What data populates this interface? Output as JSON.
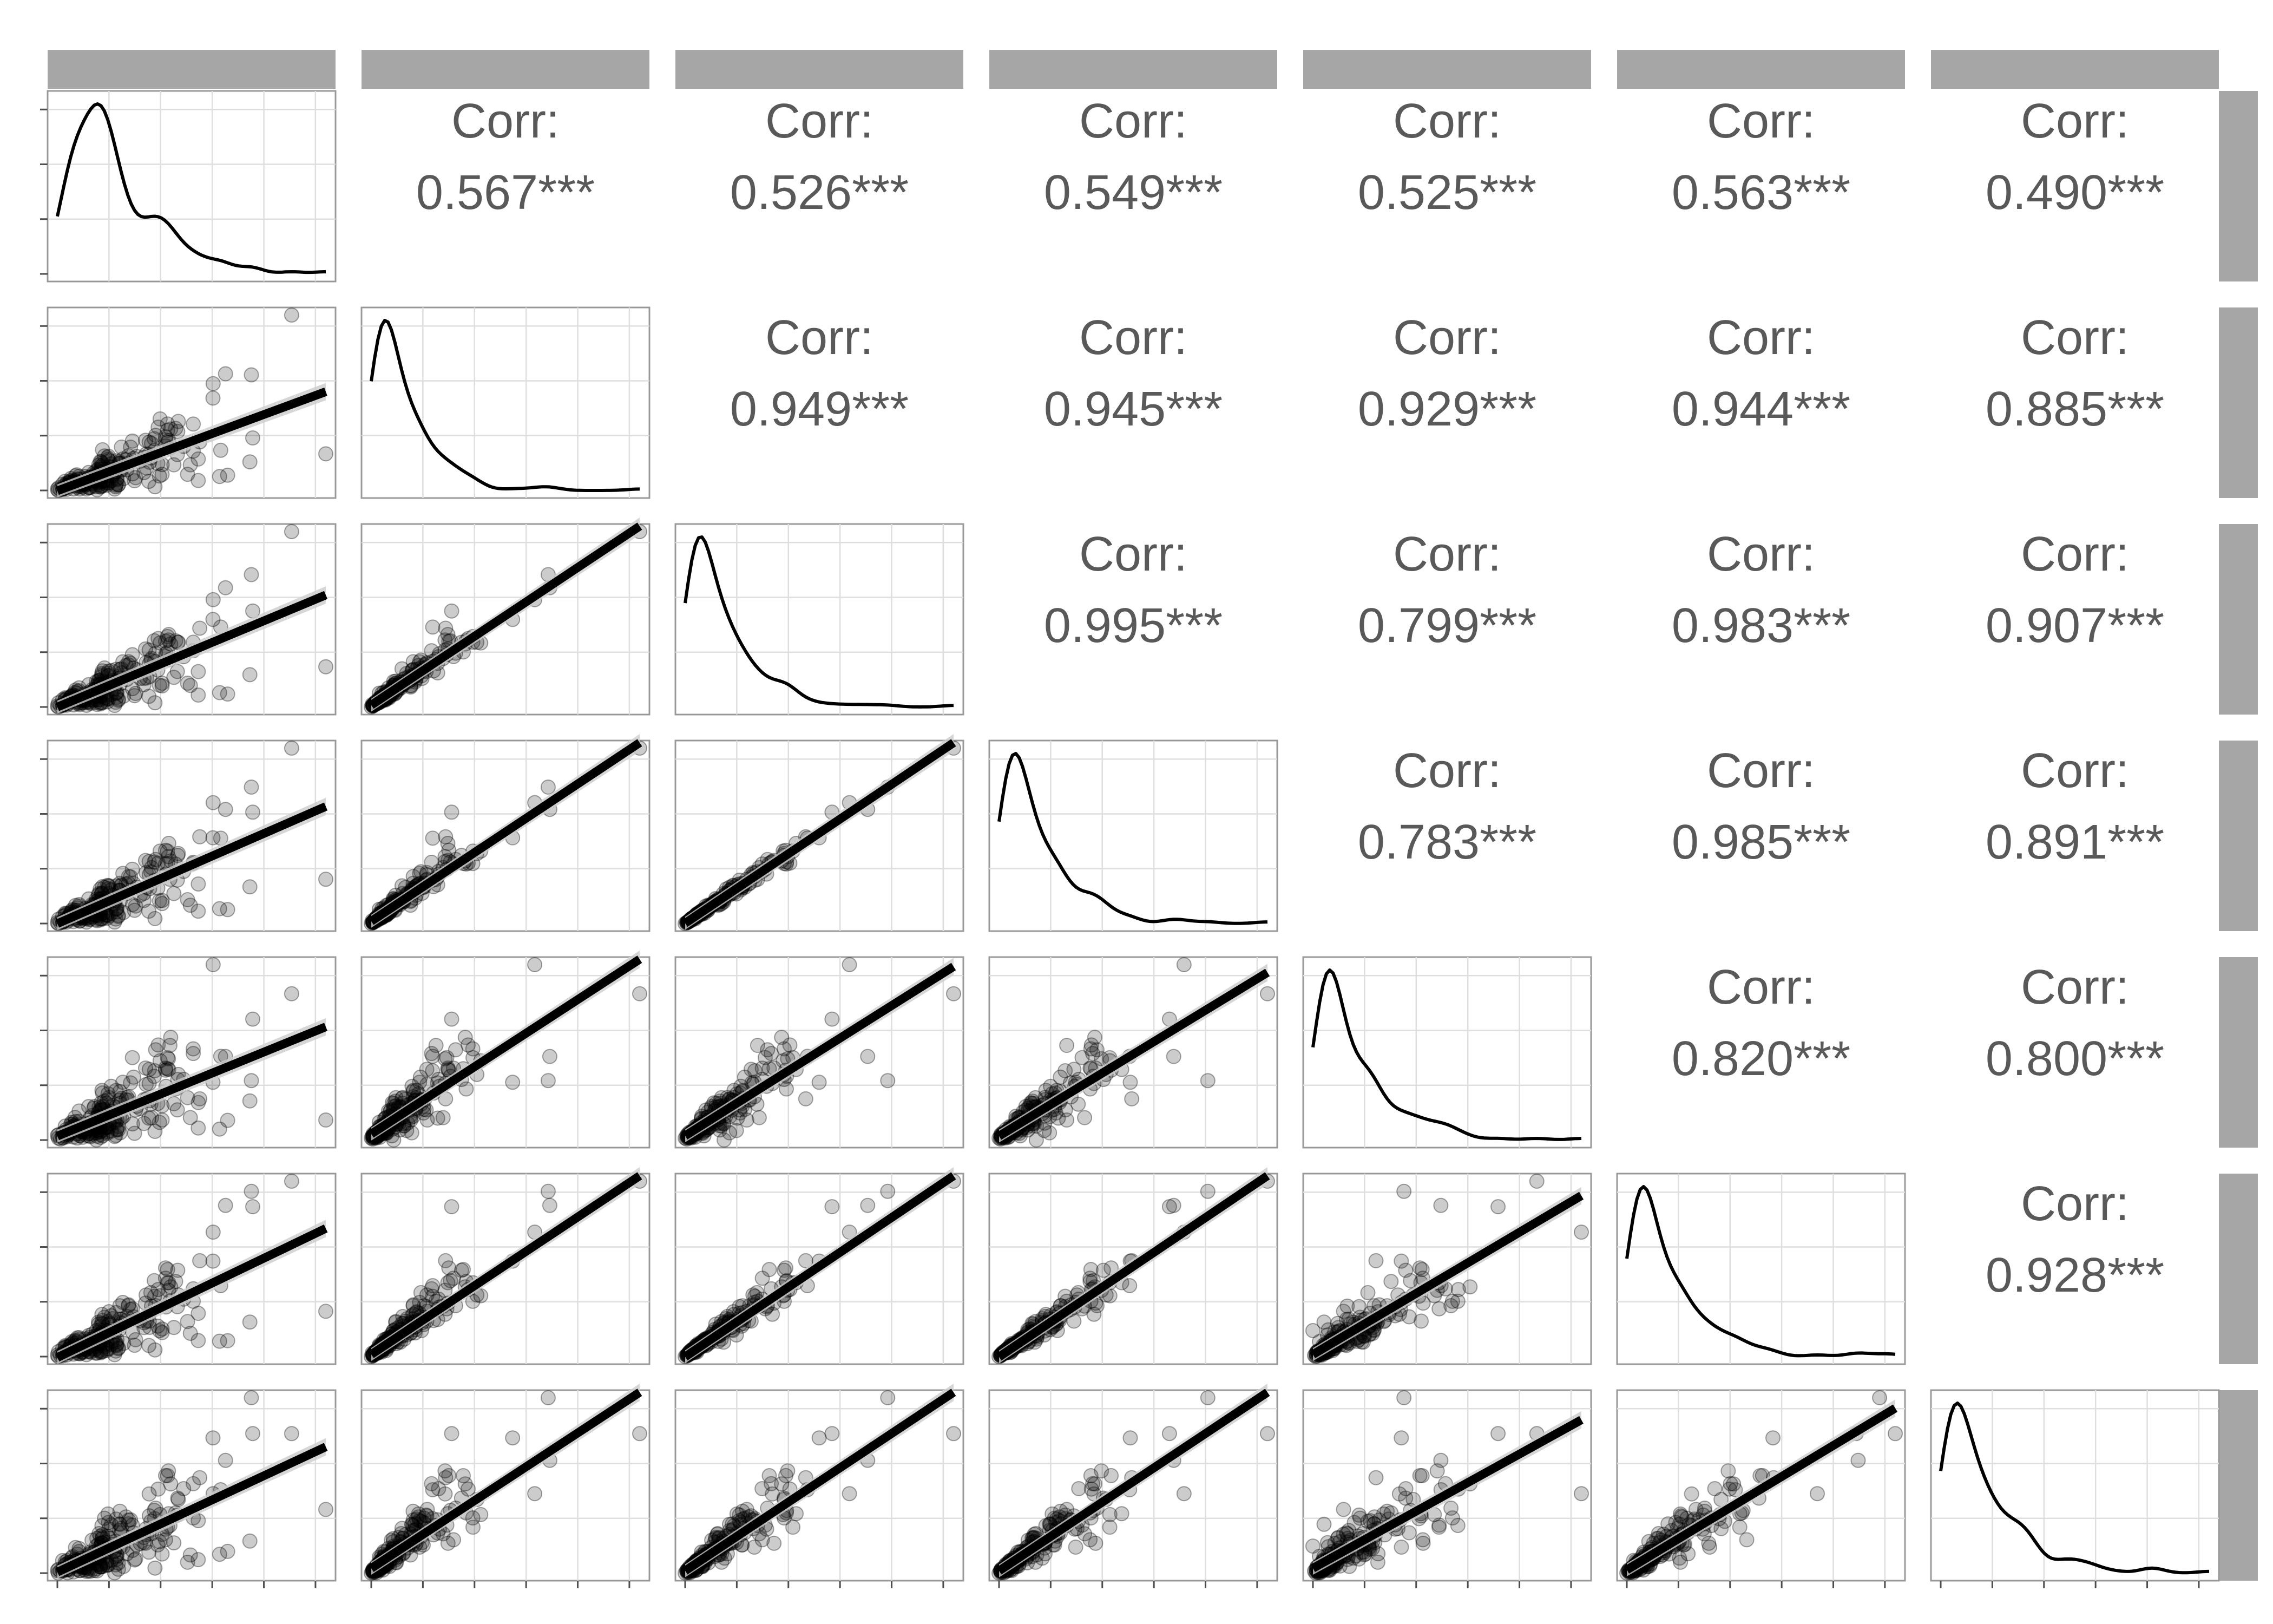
{
  "chart_data": {
    "type": "scatter",
    "title": "",
    "variables": [
      "",
      "",
      "",
      "",
      "",
      "",
      ""
    ],
    "corr_label": "Corr:",
    "correlations": [
      {
        "row": 0,
        "col": 1,
        "text": "0.567***",
        "value": 0.567
      },
      {
        "row": 0,
        "col": 2,
        "text": "0.526***",
        "value": 0.526
      },
      {
        "row": 0,
        "col": 3,
        "text": "0.549***",
        "value": 0.549
      },
      {
        "row": 0,
        "col": 4,
        "text": "0.525***",
        "value": 0.525
      },
      {
        "row": 0,
        "col": 5,
        "text": "0.563***",
        "value": 0.563
      },
      {
        "row": 0,
        "col": 6,
        "text": "0.490***",
        "value": 0.49
      },
      {
        "row": 1,
        "col": 2,
        "text": "0.949***",
        "value": 0.949
      },
      {
        "row": 1,
        "col": 3,
        "text": "0.945***",
        "value": 0.945
      },
      {
        "row": 1,
        "col": 4,
        "text": "0.929***",
        "value": 0.929
      },
      {
        "row": 1,
        "col": 5,
        "text": "0.944***",
        "value": 0.944
      },
      {
        "row": 1,
        "col": 6,
        "text": "0.885***",
        "value": 0.885
      },
      {
        "row": 2,
        "col": 3,
        "text": "0.995***",
        "value": 0.995
      },
      {
        "row": 2,
        "col": 4,
        "text": "0.799***",
        "value": 0.799
      },
      {
        "row": 2,
        "col": 5,
        "text": "0.983***",
        "value": 0.983
      },
      {
        "row": 2,
        "col": 6,
        "text": "0.907***",
        "value": 0.907
      },
      {
        "row": 3,
        "col": 4,
        "text": "0.783***",
        "value": 0.783
      },
      {
        "row": 3,
        "col": 5,
        "text": "0.985***",
        "value": 0.985
      },
      {
        "row": 3,
        "col": 6,
        "text": "0.891***",
        "value": 0.891
      },
      {
        "row": 4,
        "col": 5,
        "text": "0.820***",
        "value": 0.82
      },
      {
        "row": 4,
        "col": 6,
        "text": "0.800***",
        "value": 0.8
      },
      {
        "row": 5,
        "col": 6,
        "text": "0.928***",
        "value": 0.928
      }
    ],
    "diagonal": "density",
    "lower": "scatter with linear fit",
    "grid": true
  }
}
